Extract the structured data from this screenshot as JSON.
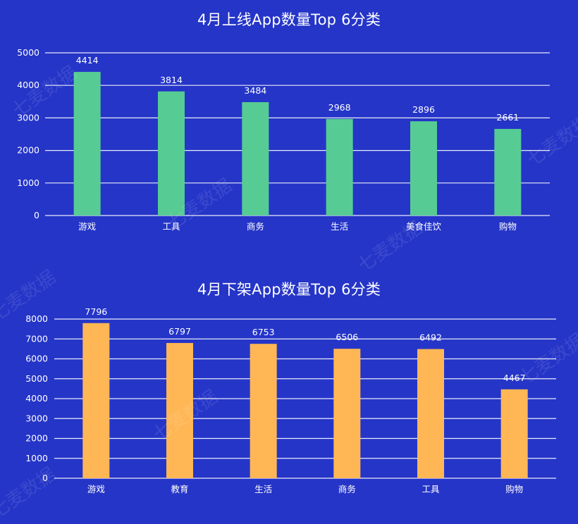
{
  "colors": {
    "background": "#2535c8",
    "gridline": "#ffffff",
    "series_top": "#56cc94",
    "series_bottom": "#ffb755",
    "text": "#ffffff"
  },
  "watermark_text": "七麦数据",
  "chart_data": [
    {
      "type": "bar",
      "title": "4月上线App数量Top 6分类",
      "categories": [
        "游戏",
        "工具",
        "商务",
        "生活",
        "美食佳饮",
        "购物"
      ],
      "values": [
        4414,
        3814,
        3484,
        2968,
        2896,
        2661
      ],
      "ylim": [
        0,
        5000
      ],
      "yticks": [
        0,
        1000,
        2000,
        3000,
        4000,
        5000
      ],
      "grid": true,
      "color": "#56cc94"
    },
    {
      "type": "bar",
      "title": "4月下架App数量Top 6分类",
      "categories": [
        "游戏",
        "教育",
        "生活",
        "商务",
        "工具",
        "购物"
      ],
      "values": [
        7796,
        6797,
        6753,
        6506,
        6492,
        4467
      ],
      "ylim": [
        0,
        8000
      ],
      "yticks": [
        0,
        1000,
        2000,
        3000,
        4000,
        5000,
        6000,
        7000,
        8000
      ],
      "grid": true,
      "color": "#ffb755"
    }
  ]
}
